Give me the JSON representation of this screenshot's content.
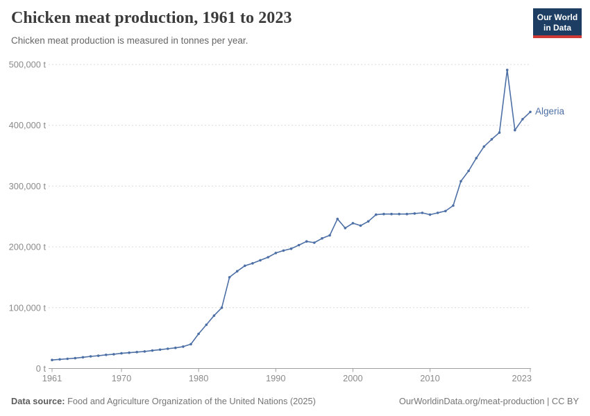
{
  "header": {
    "title": "Chicken meat production, 1961 to 2023",
    "subtitle": "Chicken meat production is measured in tonnes per year."
  },
  "logo": {
    "line1": "Our World",
    "line2": "in Data"
  },
  "colors": {
    "line": "#4c6fa5",
    "logo_navy": "#1d3d63",
    "logo_red": "#cf3a34",
    "grid": "#d9d9d9",
    "axis": "#9e9e9e",
    "tick_label": "#8a8a8a"
  },
  "chart_data": {
    "type": "line",
    "title": "Chicken meat production, 1961 to 2023",
    "xlabel": "",
    "ylabel": "tonnes per year",
    "unit": "t",
    "x_range": [
      1961,
      2023
    ],
    "y_range": [
      0,
      500000
    ],
    "grid": "horizontal-dashed",
    "legend_position": "end-of-line-label",
    "y_ticks": [
      {
        "value": 0,
        "label": "0 t"
      },
      {
        "value": 100000,
        "label": "100,000 t"
      },
      {
        "value": 200000,
        "label": "200,000 t"
      },
      {
        "value": 300000,
        "label": "300,000 t"
      },
      {
        "value": 400000,
        "label": "400,000 t"
      },
      {
        "value": 500000,
        "label": "500,000 t"
      }
    ],
    "x_ticks": [
      {
        "value": 1961,
        "label": "1961"
      },
      {
        "value": 1970,
        "label": "1970"
      },
      {
        "value": 1980,
        "label": "1980"
      },
      {
        "value": 1990,
        "label": "1990"
      },
      {
        "value": 2000,
        "label": "2000"
      },
      {
        "value": 2010,
        "label": "2010"
      },
      {
        "value": 2023,
        "label": "2023"
      }
    ],
    "series": [
      {
        "name": "Algeria",
        "color": "#4c6fa5",
        "x": [
          1961,
          1962,
          1963,
          1964,
          1965,
          1966,
          1967,
          1968,
          1969,
          1970,
          1971,
          1972,
          1973,
          1974,
          1975,
          1976,
          1977,
          1978,
          1979,
          1980,
          1981,
          1982,
          1983,
          1984,
          1985,
          1986,
          1987,
          1988,
          1989,
          1990,
          1991,
          1992,
          1993,
          1994,
          1995,
          1996,
          1997,
          1998,
          1999,
          2000,
          2001,
          2002,
          2003,
          2004,
          2005,
          2006,
          2007,
          2008,
          2009,
          2010,
          2011,
          2012,
          2013,
          2014,
          2015,
          2016,
          2017,
          2018,
          2019,
          2020,
          2021,
          2022,
          2023
        ],
        "values": [
          14000,
          15000,
          16000,
          17000,
          18500,
          20000,
          21000,
          22500,
          23500,
          25000,
          26000,
          27000,
          28000,
          29500,
          31000,
          32500,
          34000,
          36000,
          40000,
          57000,
          72000,
          87000,
          100000,
          150000,
          160000,
          169000,
          173000,
          178000,
          183000,
          190000,
          194000,
          197000,
          203000,
          209000,
          207000,
          214000,
          219000,
          246000,
          231000,
          239000,
          235000,
          242000,
          253000,
          254000,
          254000,
          254000,
          254000,
          255000,
          256000,
          253000,
          256000,
          259000,
          268000,
          308000,
          325000,
          346000,
          365000,
          377000,
          388000,
          491000,
          392000,
          410000,
          422000
        ]
      }
    ]
  },
  "footer": {
    "source_label": "Data source:",
    "source_text": "Food and Agriculture Organization of the United Nations (2025)",
    "credit": "OurWorldinData.org/meat-production | CC BY"
  }
}
